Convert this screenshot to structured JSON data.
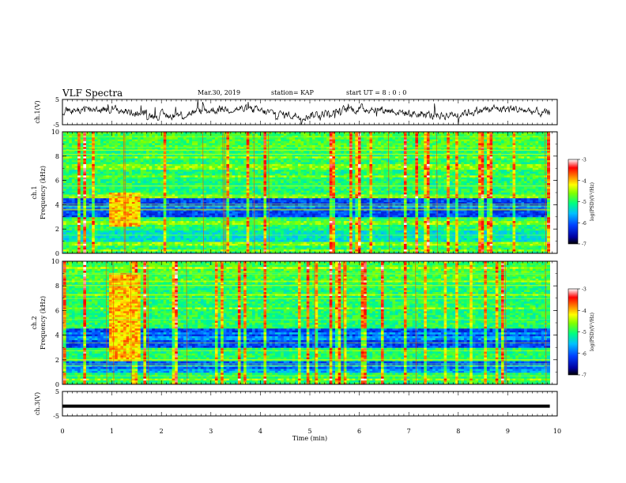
{
  "header": {
    "title": "VLF Spectra",
    "date": "Mar.30, 2019",
    "station": "station= KAP",
    "start": "start  UT =   8 : 0  : 0"
  },
  "chart_data": [
    {
      "type": "line",
      "name": "ch1-waveform",
      "ylabel": "ch.1(V)",
      "ylim": [
        -5,
        5
      ],
      "yticks": [
        "5",
        "-5"
      ],
      "xlim": [
        0,
        10
      ]
    },
    {
      "type": "heatmap",
      "name": "ch1-spectrogram",
      "ylabel": "ch.1\nFrequency  (kHz)",
      "ylabel_lines": [
        "ch.1",
        "Frequency  (kHz)"
      ],
      "ylim": [
        0,
        10
      ],
      "yticks": [
        "0",
        "2",
        "4",
        "6",
        "8",
        "10"
      ],
      "xlim": [
        0,
        9.85
      ],
      "colorbar": {
        "label": "log(PSD)(V²/Hz)",
        "range": [
          -7,
          -3
        ],
        "ticks": [
          "-3",
          "-4",
          "-5",
          "-6",
          "-7"
        ]
      },
      "bright_interval_min": [
        0.95,
        1.55
      ],
      "bright_interval_freq_khz": [
        2.2,
        5.0
      ]
    },
    {
      "type": "heatmap",
      "name": "ch2-spectrogram",
      "ylabel": "ch.2\nFrequency  (kHz)",
      "ylabel_lines": [
        "ch.2",
        "Frequency  (kHz)"
      ],
      "ylim": [
        0,
        10
      ],
      "yticks": [
        "0",
        "2",
        "4",
        "6",
        "8",
        "10"
      ],
      "xlim": [
        0,
        9.85
      ],
      "colorbar": {
        "label": "log(PSD)(V²/Hz)",
        "range": [
          -7,
          -3
        ],
        "ticks": [
          "-3",
          "-4",
          "-5",
          "-6",
          "-7"
        ]
      },
      "bright_interval_min": [
        0.95,
        1.55
      ],
      "bright_interval_freq_khz": [
        1.8,
        9.0
      ]
    },
    {
      "type": "line",
      "name": "ch3-waveform",
      "ylabel": "ch.3(V)",
      "ylim": [
        -5,
        5
      ],
      "yticks": [
        "5",
        "-5"
      ],
      "xlim": [
        0,
        10
      ],
      "constant_value": -1,
      "xlabel": "Time  (min)",
      "xticks": [
        "0",
        "1",
        "2",
        "3",
        "4",
        "5",
        "6",
        "7",
        "8",
        "9",
        "10"
      ]
    }
  ],
  "colors": {
    "scale": [
      "#000080",
      "#0000ff",
      "#00a0ff",
      "#00ffff",
      "#00ff80",
      "#80ff00",
      "#ffff00",
      "#ff8000",
      "#ff0000",
      "#ffffff"
    ]
  }
}
